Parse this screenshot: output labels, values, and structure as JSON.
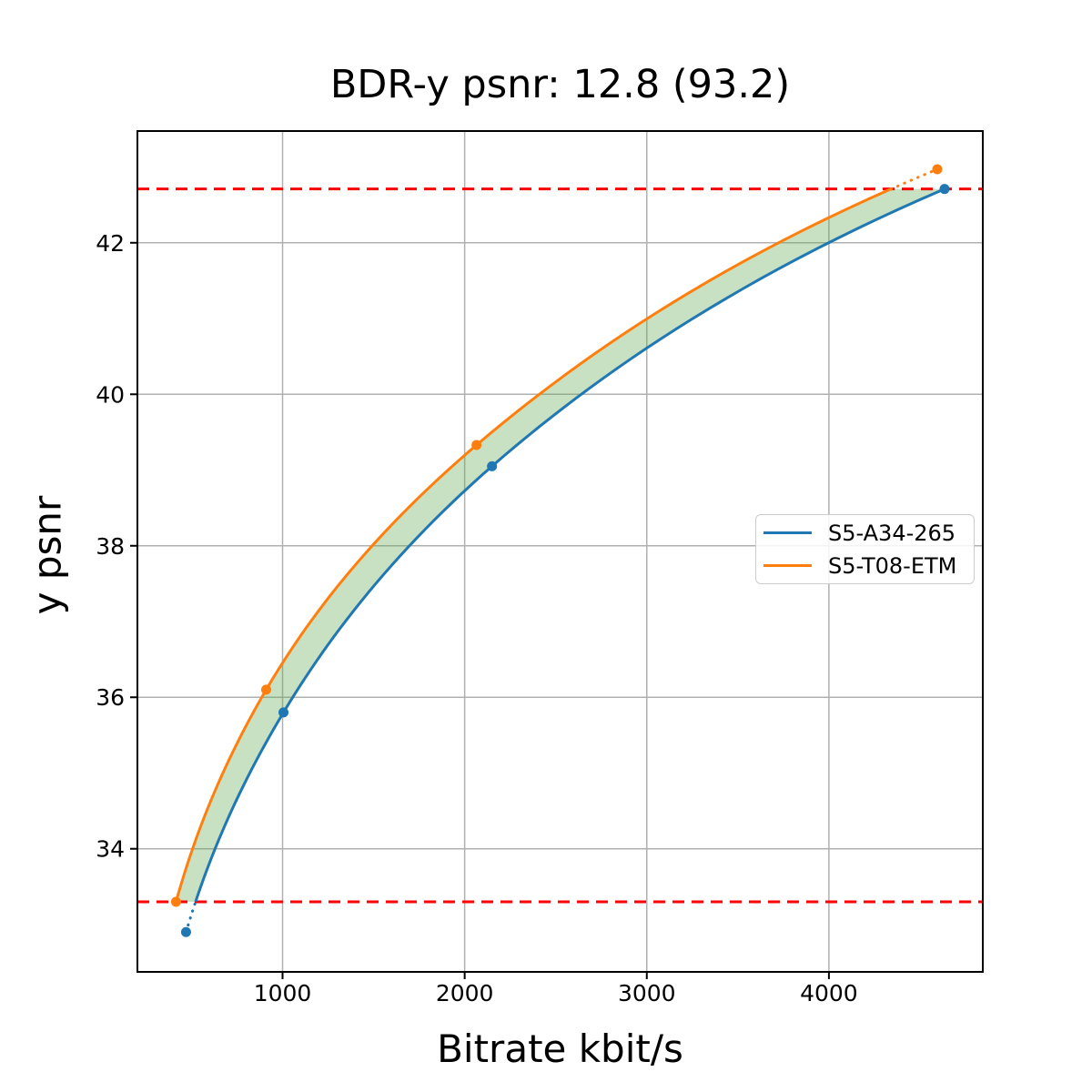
{
  "chart_data": {
    "type": "line",
    "title": "BDR-y psnr: 12.8 (93.2)",
    "xlabel": "Bitrate kbit/s",
    "ylabel": "y psnr",
    "xlim": [
      203,
      4845
    ],
    "ylim": [
      32.375,
      43.475
    ],
    "x_ticks": [
      1000,
      2000,
      3000,
      4000
    ],
    "y_ticks": [
      34,
      36,
      38,
      40,
      42
    ],
    "grid": true,
    "grid_color": "#b0b0b0",
    "legend_position": "center right",
    "series": [
      {
        "name": "S5-A34-265",
        "color": "#1f77b4",
        "marker": "circle",
        "points": [
          [
            470,
            32.9
          ],
          [
            1005,
            35.8
          ],
          [
            2150,
            39.05
          ],
          [
            4635,
            42.71
          ]
        ]
      },
      {
        "name": "S5-T08-ETM",
        "color": "#ff7f0e",
        "marker": "circle",
        "points": [
          [
            415,
            33.3
          ],
          [
            910,
            36.1
          ],
          [
            2065,
            39.33
          ],
          [
            4595,
            42.97
          ]
        ]
      }
    ],
    "overlap_lines": {
      "low": 33.3,
      "high": 42.71,
      "color": "#ff0000",
      "style": "dashed"
    },
    "fill_between": {
      "color": "#60a850",
      "opacity": 0.35
    }
  }
}
